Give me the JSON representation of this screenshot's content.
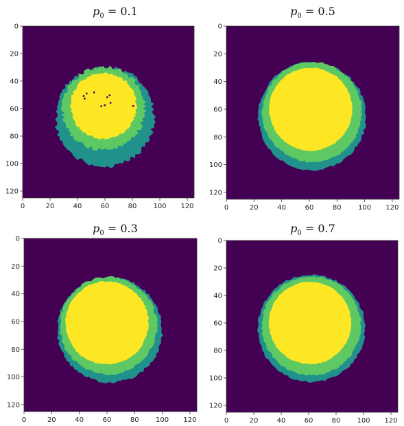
{
  "chart_data": [
    {
      "type": "heatmap",
      "title": "p₀ = 0.1",
      "title_var": "p",
      "title_sub": "0",
      "title_value": " = 0.1",
      "xticks": [
        "0",
        "20",
        "40",
        "60",
        "80",
        "100",
        "120"
      ],
      "yticks": [
        "0",
        "20",
        "40",
        "60",
        "80",
        "100",
        "120"
      ],
      "xlim": [
        0,
        125
      ],
      "ylim": [
        125,
        0
      ],
      "colors": {
        "background": "#440154",
        "teal": "#21918c",
        "green": "#5ec962",
        "yellow": "#fde725"
      },
      "regions": {
        "outer": {
          "cx": 60,
          "cy": 66,
          "r": 36
        },
        "green": {
          "cx": 59,
          "cy": 60,
          "r": 30
        },
        "yellow": {
          "cx": 59,
          "cy": 58,
          "r": 24
        }
      },
      "roughness": 3.2
    },
    {
      "type": "heatmap",
      "title": "p₀ = 0.5",
      "title_var": "p",
      "title_sub": "0",
      "title_value": " = 0.5",
      "xticks": [
        "0",
        "20",
        "40",
        "60",
        "80",
        "100",
        "120"
      ],
      "yticks": [
        "0",
        "20",
        "40",
        "60",
        "80",
        "100",
        "120"
      ],
      "xlim": [
        0,
        125
      ],
      "ylim": [
        125,
        0
      ],
      "colors": {
        "background": "#440154",
        "teal": "#21918c",
        "green": "#5ec962",
        "yellow": "#fde725"
      },
      "regions": {
        "outer": {
          "cx": 62,
          "cy": 65,
          "r": 39
        },
        "green": {
          "cx": 62,
          "cy": 62,
          "r": 36
        },
        "yellow": {
          "cx": 61,
          "cy": 60,
          "r": 30
        }
      },
      "roughness": 1.5
    },
    {
      "type": "heatmap",
      "title": "p₀ = 0.3",
      "title_var": "p",
      "title_sub": "0",
      "title_value": " = 0.3",
      "xticks": [
        "0",
        "20",
        "40",
        "60",
        "80",
        "100",
        "120"
      ],
      "yticks": [
        "0",
        "20",
        "40",
        "60",
        "80",
        "100",
        "120"
      ],
      "xlim": [
        0,
        125
      ],
      "ylim": [
        125,
        0
      ],
      "colors": {
        "background": "#440154",
        "teal": "#21918c",
        "green": "#5ec962",
        "yellow": "#fde725"
      },
      "regions": {
        "outer": {
          "cx": 62,
          "cy": 66,
          "r": 38
        },
        "green": {
          "cx": 61,
          "cy": 63,
          "r": 35
        },
        "yellow": {
          "cx": 60,
          "cy": 61,
          "r": 30
        }
      },
      "roughness": 1.8
    },
    {
      "type": "heatmap",
      "title": "p₀ = 0.7",
      "title_var": "p",
      "title_sub": "0",
      "title_value": " = 0.7",
      "xticks": [
        "0",
        "20",
        "40",
        "60",
        "80",
        "100",
        "120"
      ],
      "yticks": [
        "0",
        "20",
        "40",
        "60",
        "80",
        "100",
        "120"
      ],
      "xlim": [
        0,
        125
      ],
      "ylim": [
        125,
        0
      ],
      "colors": {
        "background": "#440154",
        "teal": "#21918c",
        "green": "#5ec962",
        "yellow": "#fde725"
      },
      "regions": {
        "outer": {
          "cx": 62,
          "cy": 64,
          "r": 39
        },
        "green": {
          "cx": 62,
          "cy": 62,
          "r": 36
        },
        "yellow": {
          "cx": 61,
          "cy": 60,
          "r": 30
        }
      },
      "roughness": 1.4
    }
  ]
}
